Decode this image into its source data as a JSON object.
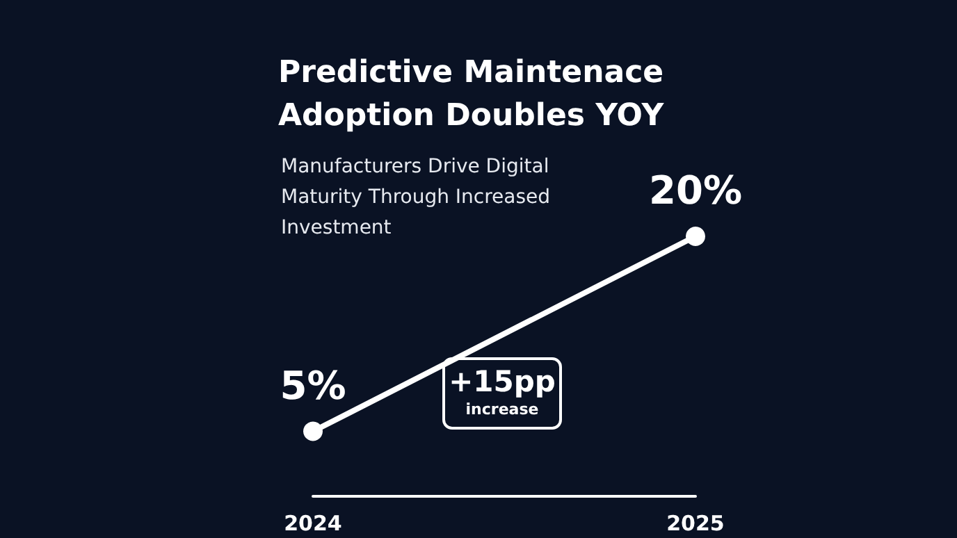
{
  "chart_data": {
    "type": "line",
    "title": "Predictive Maintenace Adoption Doubles YOY",
    "subtitle": "Manufacturers Drive Digital Maturity Through Increased Investment",
    "categories": [
      "2024",
      "2025"
    ],
    "series": [
      {
        "color": "#ffffff",
        "values": [
          5,
          20
        ],
        "value_labels": [
          "5%",
          "20%"
        ]
      }
    ],
    "annotations": [
      "+15pp increase"
    ],
    "marker": "circle",
    "line_style": "solid"
  }
}
